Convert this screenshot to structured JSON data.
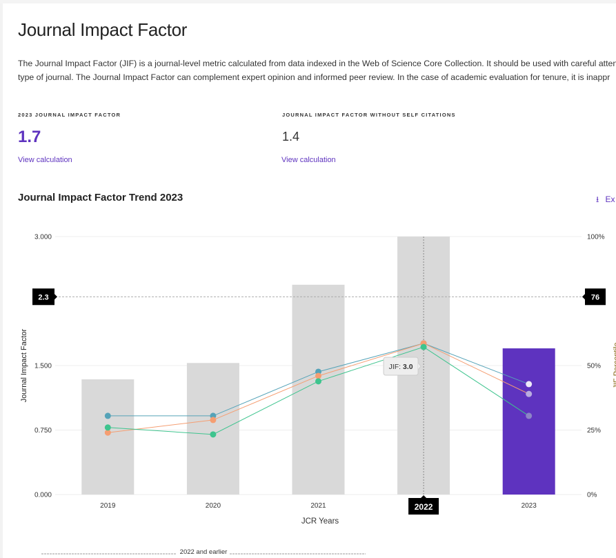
{
  "page": {
    "title": "Journal Impact Factor",
    "description_line1": "The Journal Impact Factor (JIF) is a journal-level metric calculated from data indexed in the Web of Science Core Collection. It should be used with careful atten",
    "description_line2": "type of journal. The Journal Impact Factor can complement expert opinion and informed peer review. In the case of academic evaluation for tenure, it is inappr"
  },
  "metrics": [
    {
      "label": "2023 JOURNAL IMPACT FACTOR",
      "value": "1.7",
      "link": "View calculation"
    },
    {
      "label": "JOURNAL IMPACT FACTOR WITHOUT SELF CITATIONS",
      "value": "1.4",
      "link": "View calculation"
    }
  ],
  "trend": {
    "title": "Journal Impact Factor Trend 2023",
    "export_label": "Ex",
    "export_icon": "download-icon",
    "footer_label": "2022 and earlier"
  },
  "colors": {
    "accent": "#5e33bf",
    "bar": "#d9d9d9",
    "blue": "#55a3b8",
    "orange": "#f59e72",
    "green": "#3ec48e"
  },
  "chart_data": {
    "type": "bar",
    "title": "Journal Impact Factor Trend 2023",
    "xlabel": "JCR Years",
    "ylabel": "Journal Impact Factor",
    "y2label": "JIF Percentile",
    "categories": [
      "2019",
      "2020",
      "2021",
      "2022",
      "2023"
    ],
    "ylim": [
      0,
      3
    ],
    "y2lim": [
      0,
      100
    ],
    "yticks": [
      "0.000",
      "0.750",
      "1.500",
      "3.000"
    ],
    "yticks_values": [
      0,
      0.75,
      1.5,
      3
    ],
    "y2ticks": [
      "0%",
      "25%",
      "50%",
      "100%"
    ],
    "y2ticks_values": [
      0,
      25,
      50,
      100
    ],
    "bars": {
      "name": "JIF",
      "values": [
        1.34,
        1.53,
        2.44,
        3.0,
        1.7
      ]
    },
    "series": [
      {
        "name": "percentile-blue",
        "color": "#55a3b8",
        "values": [
          30.5,
          30.5,
          47.6,
          58.6,
          42.8
        ]
      },
      {
        "name": "percentile-orange",
        "color": "#f59e72",
        "values": [
          24,
          28.9,
          46,
          58.6,
          39
        ]
      },
      {
        "name": "percentile-green",
        "color": "#3ec48e",
        "values": [
          26,
          23.3,
          43.9,
          57.2,
          30.5
        ]
      }
    ],
    "reference_line": {
      "value": 2.3,
      "label": "2.3",
      "right_label": "76"
    },
    "hover": {
      "category": "2022",
      "tooltip": "JIF: 3.0",
      "tooltip_prefix": "JIF:",
      "tooltip_value": "3.0"
    }
  }
}
